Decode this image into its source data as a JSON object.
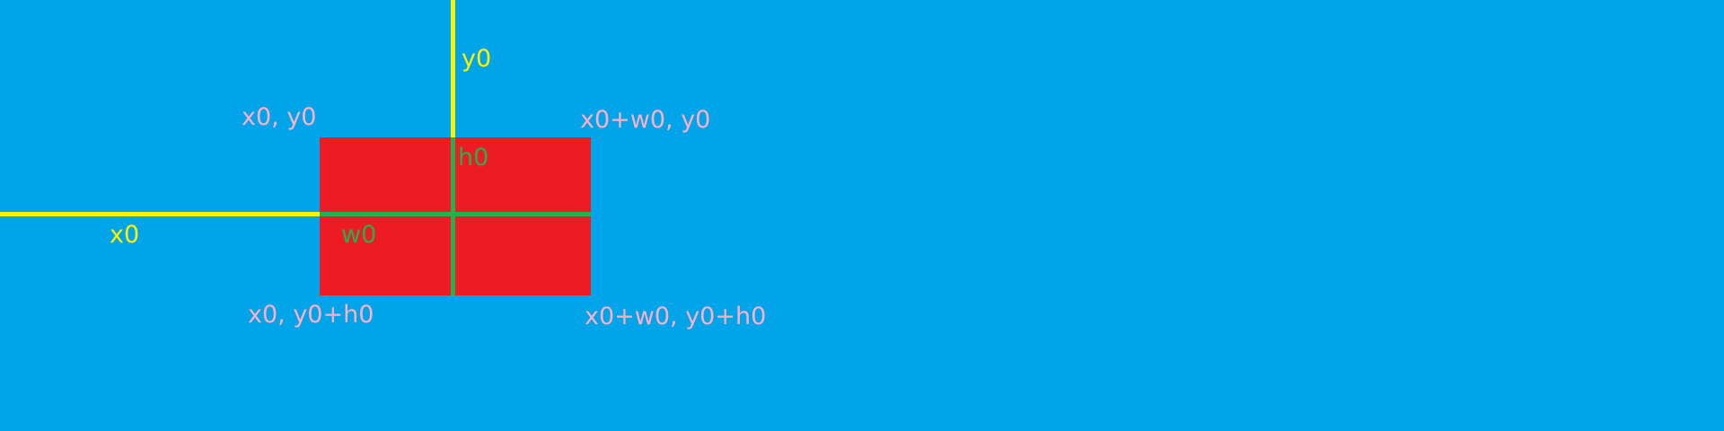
{
  "colors": {
    "background": "#00A4E8",
    "rectangle": "#ED1C24",
    "axis_lines": "#FFF200",
    "dimension_lines": "#22B14C",
    "corner_labels": "#FFAEC9"
  },
  "labels": {
    "x_axis": "x0",
    "y_axis": "y0",
    "width": "w0",
    "height": "h0",
    "corner_top_left": "x0, y0",
    "corner_top_right": "x0+w0, y0",
    "corner_bottom_left": "x0, y0+h0",
    "corner_bottom_right": "x0+w0, y0+h0"
  }
}
